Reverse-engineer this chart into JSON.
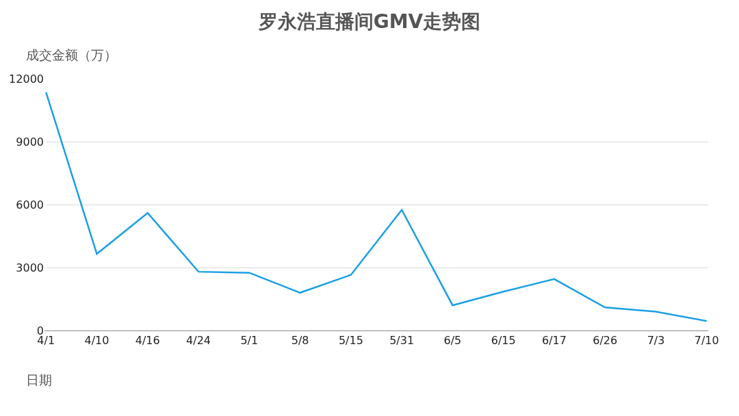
{
  "chart_data": {
    "type": "line",
    "title": "罗永浩直播间GMV走势图",
    "xlabel": "日期",
    "ylabel": "成交金额（万）",
    "categories": [
      "4/1",
      "4/10",
      "4/16",
      "4/24",
      "5/1",
      "5/8",
      "5/15",
      "5/31",
      "6/5",
      "6/15",
      "6/17",
      "6/26",
      "7/3",
      "7/10"
    ],
    "series": [
      {
        "color": "#1a9fe4",
        "values": [
          11350,
          3650,
          5600,
          2800,
          2750,
          1800,
          2650,
          5750,
          1200,
          1850,
          2450,
          1100,
          900,
          450
        ]
      }
    ],
    "ylim": [
      0,
      12000
    ],
    "yticks": [
      0,
      3000,
      6000,
      9000,
      12000
    ],
    "grid": "y",
    "legend": false,
    "marker": "none",
    "line_style": "solid"
  }
}
